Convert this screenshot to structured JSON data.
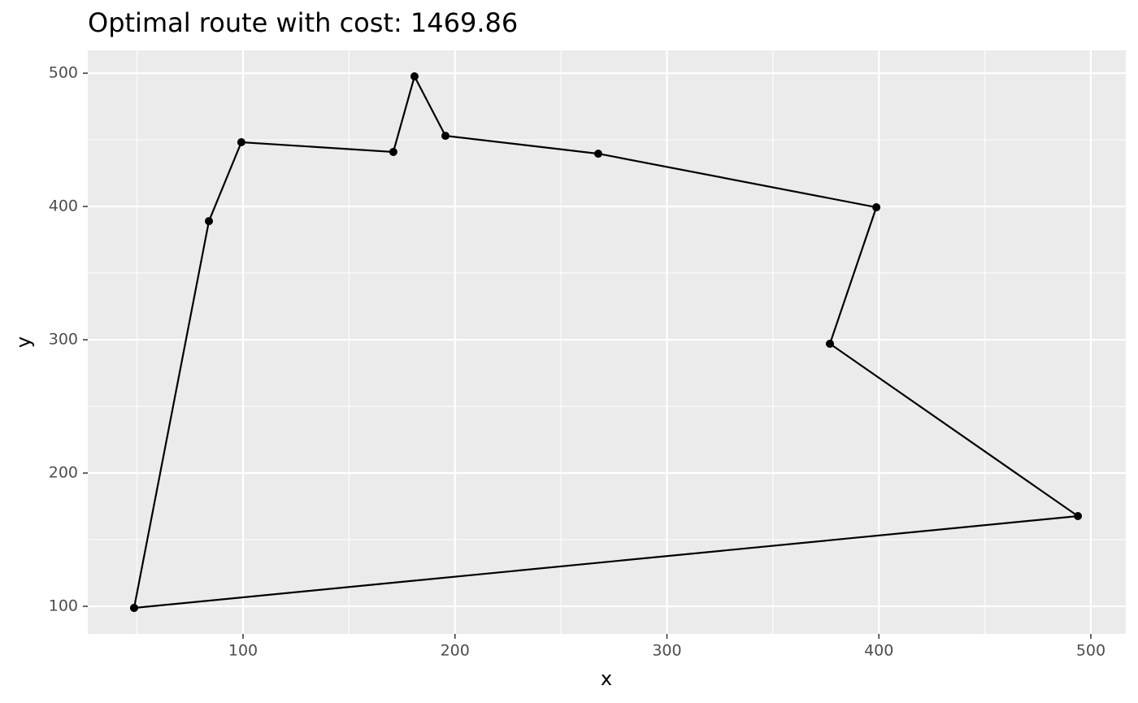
{
  "chart_data": {
    "type": "line",
    "title": "Optimal route with cost: 1469.86",
    "x_label": "x",
    "y_label": "y",
    "x": [
      48.6,
      83.9,
      99.2,
      170.9,
      180.9,
      195.5,
      267.6,
      398.8,
      376.9,
      493.9,
      48.6
    ],
    "values": [
      98.8,
      389.0,
      448.2,
      440.9,
      497.6,
      453.0,
      439.6,
      399.4,
      297.0,
      167.7,
      98.8
    ],
    "color": "#000000",
    "markers": true,
    "xlim": [
      26.75,
      516.5
    ],
    "ylim": [
      79.3,
      517.1
    ],
    "xticks": [
      100,
      200,
      300,
      400,
      500
    ],
    "yticks": [
      100,
      200,
      300,
      400,
      500
    ],
    "grid": true
  }
}
